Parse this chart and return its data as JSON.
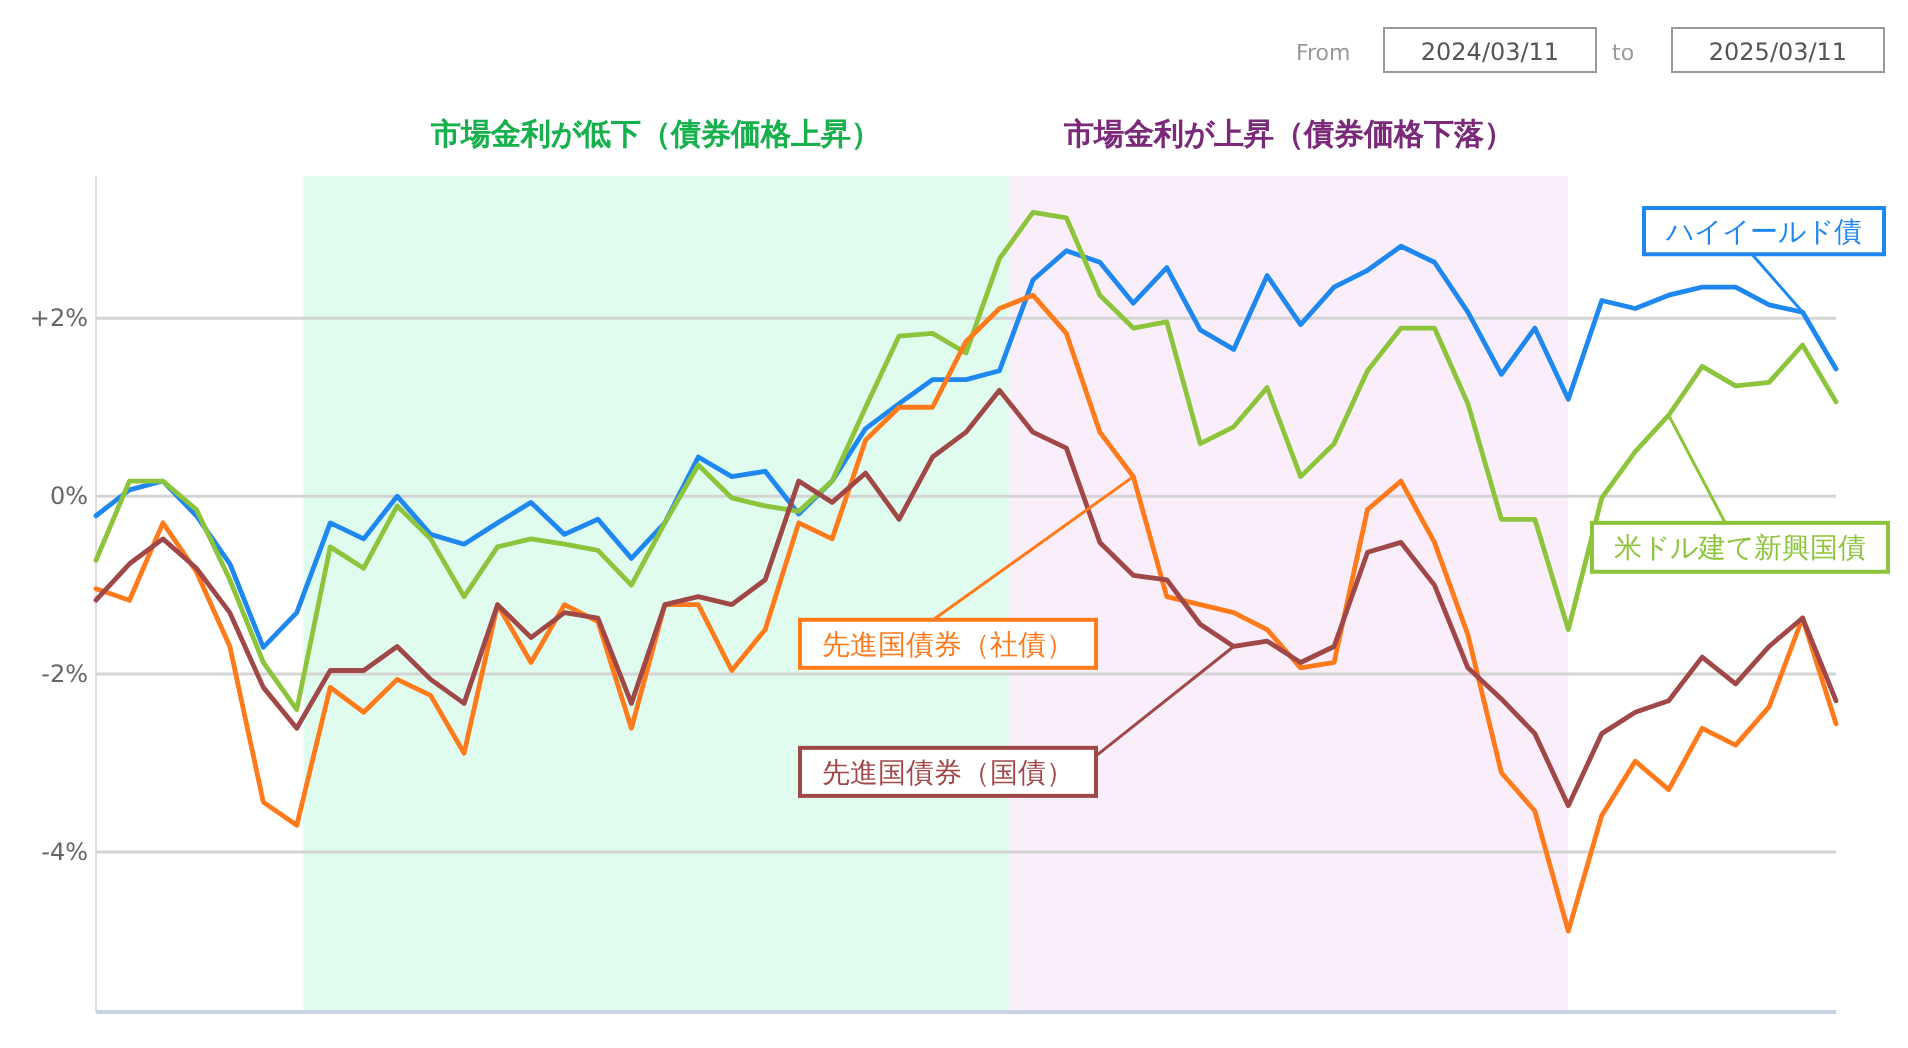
{
  "chart_data": {
    "type": "line",
    "categories": [
      null,
      null,
      null,
      null,
      null,
      null,
      null,
      null,
      null,
      null,
      null,
      null,
      null,
      null,
      null,
      null,
      null,
      null,
      null,
      null,
      null,
      null,
      null,
      null,
      null,
      null,
      null,
      null,
      null,
      null,
      null,
      null,
      null,
      null,
      null,
      null,
      null,
      null,
      null,
      null,
      null,
      null,
      null,
      null,
      null,
      null,
      null,
      null,
      null,
      null,
      null,
      null,
      null
    ],
    "ylim": [
      -5.8,
      3.6
    ],
    "yticks": [
      {
        "value": 2,
        "label": "+2%"
      },
      {
        "value": 0,
        "label": "0%"
      },
      {
        "value": -2,
        "label": "-2%"
      },
      {
        "value": -4,
        "label": "-4%"
      }
    ],
    "grid": "y",
    "tick_labels": "y",
    "series": [
      {
        "name": "ハイイールド債",
        "color": "#1e88f0",
        "values": [
          -0.22,
          0.07,
          0.17,
          -0.22,
          -0.76,
          -1.7,
          -1.31,
          -0.3,
          -0.48,
          0,
          -0.43,
          -0.54,
          -0.3,
          -0.07,
          -0.43,
          -0.26,
          -0.7,
          -0.3,
          0.44,
          0.22,
          0.28,
          -0.2,
          0.17,
          0.76,
          1.04,
          1.31,
          1.31,
          1.41,
          2.43,
          2.76,
          2.63,
          2.17,
          2.57,
          1.87,
          1.65,
          2.48,
          1.93,
          2.35,
          2.54,
          2.81,
          2.63,
          2.07,
          1.37,
          1.89,
          1.09,
          2.2,
          2.11,
          2.26,
          2.35,
          2.35,
          2.15,
          2.07,
          1.43
        ]
      },
      {
        "name": "米ドル建て新興国債",
        "color": "#8cc43c",
        "values": [
          -0.72,
          0.17,
          0.17,
          -0.15,
          -0.94,
          -1.87,
          -2.4,
          -0.57,
          -0.81,
          -0.11,
          -0.48,
          -1.13,
          -0.57,
          -0.48,
          -0.54,
          -0.61,
          -1.0,
          -0.3,
          0.35,
          -0.02,
          -0.11,
          -0.17,
          0.17,
          1.0,
          1.8,
          1.83,
          1.61,
          2.67,
          3.19,
          3.13,
          2.26,
          1.89,
          1.96,
          0.59,
          0.78,
          1.22,
          0.22,
          0.59,
          1.41,
          1.89,
          1.89,
          1.04,
          -0.26,
          -0.26,
          -1.5,
          -0.02,
          0.5,
          0.91,
          1.46,
          1.24,
          1.28,
          1.7,
          1.06
        ]
      },
      {
        "name": "先進国債券（社債）",
        "color": "#ff7a1a",
        "values": [
          -1.04,
          -1.17,
          -0.3,
          -0.85,
          -1.69,
          -3.44,
          -3.7,
          -2.15,
          -2.43,
          -2.06,
          -2.24,
          -2.89,
          -1.22,
          -1.87,
          -1.22,
          -1.41,
          -2.61,
          -1.22,
          -1.22,
          -1.96,
          -1.5,
          -0.3,
          -0.48,
          0.63,
          1.0,
          1.0,
          1.74,
          2.11,
          2.26,
          1.83,
          0.72,
          0.22,
          -1.13,
          -1.22,
          -1.31,
          -1.5,
          -1.93,
          -1.87,
          -0.15,
          0.17,
          -0.52,
          -1.56,
          -3.11,
          -3.54,
          -4.89,
          -3.59,
          -2.98,
          -3.3,
          -2.61,
          -2.8,
          -2.37,
          -1.37,
          -2.56
        ]
      },
      {
        "name": "先進国債券（国債）",
        "color": "#a04848",
        "values": [
          -1.17,
          -0.76,
          -0.48,
          -0.81,
          -1.31,
          -2.15,
          -2.61,
          -1.96,
          -1.96,
          -1.69,
          -2.06,
          -2.33,
          -1.22,
          -1.59,
          -1.31,
          -1.37,
          -2.33,
          -1.22,
          -1.13,
          -1.22,
          -0.94,
          0.17,
          -0.07,
          0.26,
          -0.26,
          0.44,
          0.72,
          1.19,
          0.72,
          0.54,
          -0.52,
          -0.89,
          -0.94,
          -1.44,
          -1.69,
          -1.63,
          -1.87,
          -1.69,
          -0.63,
          -0.52,
          -1.0,
          -1.93,
          -2.28,
          -2.67,
          -3.48,
          -2.67,
          -2.43,
          -2.3,
          -1.81,
          -2.11,
          -1.69,
          -1.37,
          -2.3
        ]
      }
    ],
    "annotations": [
      "市場金利が低下（債券価格上昇）",
      "市場金利が上昇（債券価格下落）",
      "From",
      "2024/03/11",
      "to",
      "2025/03/11"
    ]
  }
}
